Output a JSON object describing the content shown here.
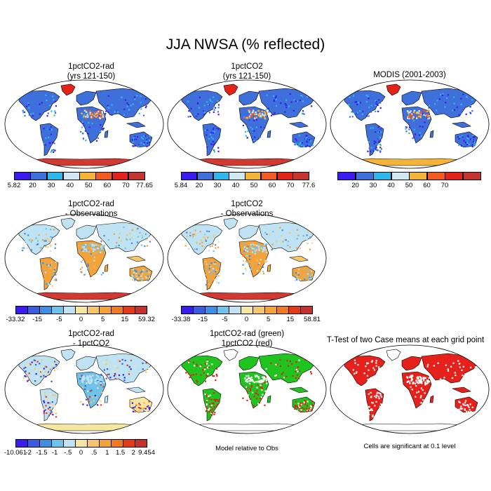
{
  "title": "JJA NWSA (% reflected)",
  "panels": [
    {
      "id": "p1",
      "line1": "1pctCO2-rad",
      "line2": "(yrs 121-150)",
      "scheme": "abs",
      "antarctic": "#d13a32"
    },
    {
      "id": "p2",
      "line1": "1pctCO2",
      "line2": "(yrs 121-150)",
      "scheme": "abs",
      "antarctic": "#d13a32"
    },
    {
      "id": "p3",
      "line1": "MODIS (2001-2003)",
      "line2": "",
      "scheme": "abs",
      "antarctic": "#f4b33a"
    },
    {
      "id": "p4",
      "line1": "1pctCO2-rad",
      "line2": "- Observations",
      "scheme": "diff",
      "antarctic": "#d13a32"
    },
    {
      "id": "p5",
      "line1": "1pctCO2",
      "line2": "- Observations",
      "scheme": "diff",
      "antarctic": "#d13a32"
    },
    {
      "id": "p6",
      "line1": "1pctCO2-rad",
      "line2": "- 1pctCO2",
      "scheme": "small",
      "antarctic": "#f5e7a0"
    },
    {
      "id": "p7",
      "line1": "1pctCO2-rad (green)",
      "line2": "1pctCO2 (red)",
      "scheme": "greenred",
      "antarctic": "#ffffff"
    },
    {
      "id": "p8",
      "line1": "T-Test of two Case means at each grid point",
      "line2": "",
      "scheme": "ttest",
      "antarctic": "#ffffff"
    }
  ],
  "colorbars": [
    {
      "id": "cb1",
      "colors": [
        "#3b1cf0",
        "#3f6fdb",
        "#2eb7ea",
        "#cfe8f1",
        "#f4b33a",
        "#f25a22",
        "#e2231a",
        "#c4352f"
      ],
      "labels": [
        "5.82",
        "20",
        "30",
        "40",
        "50",
        "60",
        "70",
        "77.65"
      ]
    },
    {
      "id": "cb2",
      "colors": [
        "#3b1cf0",
        "#3f6fdb",
        "#2eb7ea",
        "#cfe8f1",
        "#f4b33a",
        "#f25a22",
        "#e2231a",
        "#c4352f"
      ],
      "labels": [
        "5.84",
        "20",
        "30",
        "40",
        "50",
        "60",
        "70",
        "77.6"
      ]
    },
    {
      "id": "cb3",
      "colors": [
        "#3b1cf0",
        "#3f6fdb",
        "#2eb7ea",
        "#cfe8f1",
        "#f4b33a",
        "#f25a22",
        "#e2231a",
        "#c4352f"
      ],
      "labels": [
        "20",
        "30",
        "40",
        "50",
        "60",
        "70"
      ]
    },
    {
      "id": "cb4",
      "colors": [
        "#3b1cf0",
        "#3a5ce0",
        "#3f8ee6",
        "#6fc3ea",
        "#bfe3f2",
        "#f6e7a0",
        "#f6c66a",
        "#f3a33a",
        "#f07a22",
        "#e5391c",
        "#c8302c"
      ],
      "labels": [
        "-33.32",
        "-15",
        "-5",
        "0",
        "5",
        "15",
        "59.32"
      ]
    },
    {
      "id": "cb5",
      "colors": [
        "#3b1cf0",
        "#3a5ce0",
        "#3f8ee6",
        "#6fc3ea",
        "#bfe3f2",
        "#f6e7a0",
        "#f6c66a",
        "#f3a33a",
        "#f07a22",
        "#e5391c",
        "#c8302c"
      ],
      "labels": [
        "-33.38",
        "-15",
        "-5",
        "0",
        "5",
        "15",
        "58.81"
      ]
    },
    {
      "id": "cb6",
      "colors": [
        "#3b1cf0",
        "#3a5ce0",
        "#3f8ee6",
        "#6fc3ea",
        "#bfe3f2",
        "#f6e7a0",
        "#f6c66a",
        "#f3a33a",
        "#f07a22",
        "#e5391c",
        "#c8302c"
      ],
      "labels": [
        "-10.061",
        "-2",
        "-1.5",
        "-1",
        "-.5",
        "0",
        ".5",
        "1",
        "1.5",
        "2",
        "9.454"
      ]
    }
  ],
  "notes": {
    "model_relative": "Model relative to Obs",
    "significance": "Cells are significant at 0.1 level"
  }
}
